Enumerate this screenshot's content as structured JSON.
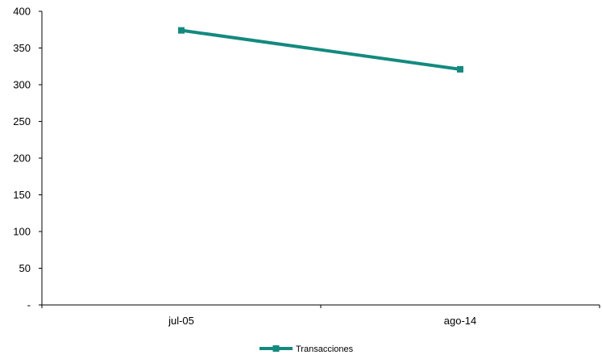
{
  "chart_data": {
    "type": "line",
    "categories": [
      "jul-05",
      "ago-14"
    ],
    "series": [
      {
        "name": "Transacciones",
        "values": [
          374,
          321
        ],
        "color": "#138a7e",
        "marker": "square"
      }
    ],
    "y_ticks": [
      "-",
      "50",
      "100",
      "150",
      "200",
      "250",
      "300",
      "350",
      "400"
    ],
    "ylim": [
      0,
      400
    ],
    "grid": false,
    "legend_position": "bottom-center"
  }
}
